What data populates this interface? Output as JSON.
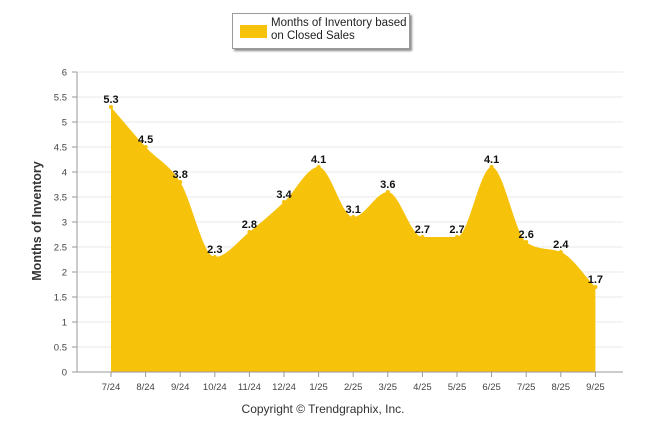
{
  "chart_data": {
    "type": "area",
    "title": "",
    "categories": [
      "7/24",
      "8/24",
      "9/24",
      "10/24",
      "11/24",
      "12/24",
      "1/25",
      "2/25",
      "3/25",
      "4/25",
      "5/25",
      "6/25",
      "7/25",
      "8/25",
      "9/25"
    ],
    "series": [
      {
        "name": "Months of Inventory based on Closed Sales",
        "values": [
          5.3,
          4.5,
          3.8,
          2.3,
          2.8,
          3.4,
          4.1,
          3.1,
          3.6,
          2.7,
          2.7,
          4.1,
          2.6,
          2.4,
          1.7
        ]
      }
    ],
    "data_labels": [
      "5.3",
      "4.5",
      "3.8",
      "2.3",
      "2.8",
      "3.4",
      "4.1",
      "3.1",
      "3.6",
      "2.7",
      "2.7",
      "4.1",
      "2.6",
      "2.4",
      "1.7"
    ],
    "yticks": [
      "0",
      "0.5",
      "1",
      "1.5",
      "2",
      "2.5",
      "3",
      "3.5",
      "4",
      "4.5",
      "5",
      "5.5",
      "6"
    ],
    "ylim": [
      0,
      6
    ],
    "xlabel": "",
    "ylabel": "Months of Inventory",
    "legend": "top-center",
    "grid": true,
    "fill_color": "#f7c20a",
    "grid_color": "#e8e8e8"
  },
  "footer": {
    "copyright": "Copyright © Trendgraphix, Inc."
  }
}
